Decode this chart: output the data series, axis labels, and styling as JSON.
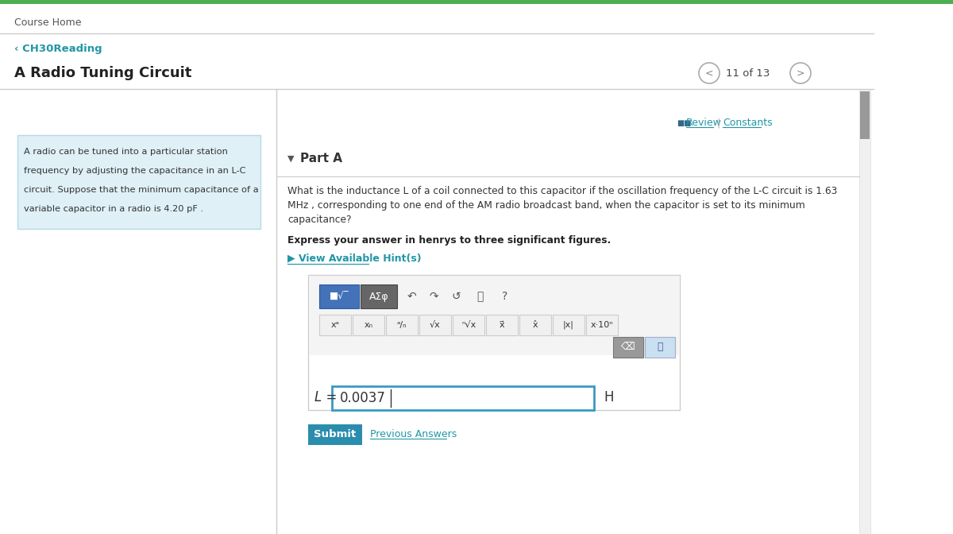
{
  "top_bar_color": "#4CAF50",
  "background_color": "#f5f5f5",
  "content_bg": "#ffffff",
  "course_home_text": "Course Home",
  "breadcrumb_text": "‹ CH30Reading",
  "breadcrumb_color": "#2196A6",
  "title_text": "A Radio Tuning Circuit",
  "nav_text": "11 of 13",
  "review_text": "Review",
  "constants_text": "Constants",
  "review_color": "#2196A6",
  "sidebar_bg": "#dff0f7",
  "sidebar_text_line1": "A radio can be tuned into a particular station",
  "sidebar_text_line2": "frequency by adjusting the capacitance in an L-C",
  "sidebar_text_line3": "circuit. Suppose that the minimum capacitance of a",
  "sidebar_text_line4": "variable capacitor in a radio is 4.20 pF .",
  "sidebar_text_color": "#333333",
  "part_a_text": "Part A",
  "question_line1": "What is the inductance L of a coil connected to this capacitor if the oscillation frequency of the L-C circuit is 1.63",
  "question_line2": "MHz , corresponding to one end of the AM radio broadcast band, when the capacitor is set to its minimum",
  "question_line3": "capacitance?",
  "express_text": "Express your answer in henrys to three significant figures.",
  "hint_text": "▶ View Available Hint(s)",
  "hint_color": "#2196A6",
  "answer_label": "L =",
  "answer_value": "0.0037",
  "answer_unit": "H",
  "submit_text": "Submit",
  "submit_bg": "#2b8dad",
  "prev_answers_text": "Previous Answers",
  "divider_color": "#cccccc",
  "toolbar_btn1_bg": "#4472b8",
  "toolbar_btn2_bg": "#666666",
  "answer_box_border": "#3a9abf",
  "nav_circle_border": "#aaaaaa",
  "scrollbar_color": "#999999"
}
